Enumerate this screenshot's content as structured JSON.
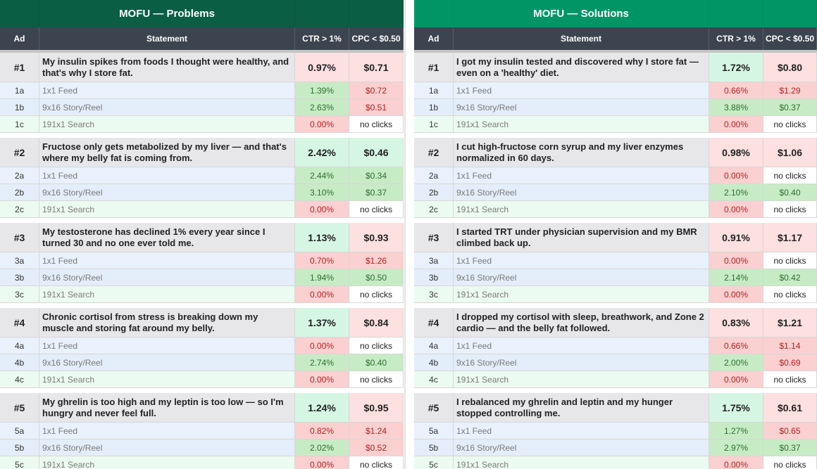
{
  "panels": [
    {
      "title": "MOFU — Problems",
      "title_color": "#095e43",
      "headers": {
        "ad": "Ad",
        "statement": "Statement",
        "ctr": "CTR > 1%",
        "cpc": "CPC < $0.50"
      },
      "groups": [
        {
          "main": {
            "ad": "#1",
            "statement": "My insulin spikes from foods I thought were healthy, and that's why I store fat.",
            "ctr": "0.97%",
            "ctr_status": "bad",
            "cpc": "$0.71",
            "cpc_status": "bad"
          },
          "subs": [
            {
              "ad": "1a",
              "format": "1x1 Feed",
              "ctr": "1.39%",
              "ctr_status": "good",
              "cpc": "$0.72",
              "cpc_status": "bad"
            },
            {
              "ad": "1b",
              "format": "9x16 Story/Reel",
              "ctr": "2.63%",
              "ctr_status": "good",
              "cpc": "$0.51",
              "cpc_status": "bad"
            },
            {
              "ad": "1c",
              "format": "191x1 Search",
              "ctr": "0.00%",
              "ctr_status": "zero",
              "cpc": "no clicks",
              "cpc_status": "none"
            }
          ]
        },
        {
          "main": {
            "ad": "#2",
            "statement": "Fructose only gets metabolized by my liver — and that's where my belly fat is coming from.",
            "ctr": "2.42%",
            "ctr_status": "good",
            "cpc": "$0.46",
            "cpc_status": "good"
          },
          "subs": [
            {
              "ad": "2a",
              "format": "1x1 Feed",
              "ctr": "2.44%",
              "ctr_status": "good",
              "cpc": "$0.34",
              "cpc_status": "good"
            },
            {
              "ad": "2b",
              "format": "9x16 Story/Reel",
              "ctr": "3.10%",
              "ctr_status": "good",
              "cpc": "$0.37",
              "cpc_status": "good"
            },
            {
              "ad": "2c",
              "format": "191x1 Search",
              "ctr": "0.00%",
              "ctr_status": "zero",
              "cpc": "no clicks",
              "cpc_status": "none"
            }
          ]
        },
        {
          "main": {
            "ad": "#3",
            "statement": "My testosterone has declined 1% every year since I turned 30 and no one ever told me.",
            "ctr": "1.13%",
            "ctr_status": "good",
            "cpc": "$0.93",
            "cpc_status": "bad"
          },
          "subs": [
            {
              "ad": "3a",
              "format": "1x1 Feed",
              "ctr": "0.70%",
              "ctr_status": "bad",
              "cpc": "$1.26",
              "cpc_status": "bad"
            },
            {
              "ad": "3b",
              "format": "9x16 Story/Reel",
              "ctr": "1.94%",
              "ctr_status": "good",
              "cpc": "$0.50",
              "cpc_status": "good"
            },
            {
              "ad": "3c",
              "format": "191x1 Search",
              "ctr": "0.00%",
              "ctr_status": "zero",
              "cpc": "no clicks",
              "cpc_status": "none"
            }
          ]
        },
        {
          "main": {
            "ad": "#4",
            "statement": "Chronic cortisol from stress is breaking down my muscle and storing fat around my belly.",
            "ctr": "1.37%",
            "ctr_status": "good",
            "cpc": "$0.84",
            "cpc_status": "bad"
          },
          "subs": [
            {
              "ad": "4a",
              "format": "1x1 Feed",
              "ctr": "0.00%",
              "ctr_status": "zero",
              "cpc": "no clicks",
              "cpc_status": "none"
            },
            {
              "ad": "4b",
              "format": "9x16 Story/Reel",
              "ctr": "2.74%",
              "ctr_status": "good",
              "cpc": "$0.40",
              "cpc_status": "good"
            },
            {
              "ad": "4c",
              "format": "191x1 Search",
              "ctr": "0.00%",
              "ctr_status": "zero",
              "cpc": "no clicks",
              "cpc_status": "none"
            }
          ]
        },
        {
          "main": {
            "ad": "#5",
            "statement": "My ghrelin is too high and my leptin is too low — so I'm hungry and never feel full.",
            "ctr": "1.24%",
            "ctr_status": "good",
            "cpc": "$0.95",
            "cpc_status": "bad"
          },
          "subs": [
            {
              "ad": "5a",
              "format": "1x1 Feed",
              "ctr": "0.82%",
              "ctr_status": "bad",
              "cpc": "$1.24",
              "cpc_status": "bad"
            },
            {
              "ad": "5b",
              "format": "9x16 Story/Reel",
              "ctr": "2.02%",
              "ctr_status": "good",
              "cpc": "$0.52",
              "cpc_status": "bad"
            },
            {
              "ad": "5c",
              "format": "191x1 Search",
              "ctr": "0.00%",
              "ctr_status": "zero",
              "cpc": "no clicks",
              "cpc_status": "none"
            }
          ]
        }
      ]
    },
    {
      "title": "MOFU — Solutions",
      "title_color": "#019566",
      "headers": {
        "ad": "Ad",
        "statement": "Statement",
        "ctr": "CTR > 1%",
        "cpc": "CPC < $0.50"
      },
      "groups": [
        {
          "main": {
            "ad": "#1",
            "statement": "I got my insulin tested and discovered why I store fat — even on a 'healthy' diet.",
            "ctr": "1.72%",
            "ctr_status": "good",
            "cpc": "$0.80",
            "cpc_status": "bad"
          },
          "subs": [
            {
              "ad": "1a",
              "format": "1x1 Feed",
              "ctr": "0.66%",
              "ctr_status": "bad",
              "cpc": "$1.29",
              "cpc_status": "bad"
            },
            {
              "ad": "1b",
              "format": "9x16 Story/Reel",
              "ctr": "3.88%",
              "ctr_status": "good",
              "cpc": "$0.37",
              "cpc_status": "good"
            },
            {
              "ad": "1c",
              "format": "191x1 Search",
              "ctr": "0.00%",
              "ctr_status": "zero",
              "cpc": "no clicks",
              "cpc_status": "none"
            }
          ]
        },
        {
          "main": {
            "ad": "#2",
            "statement": "I cut high-fructose corn syrup and my liver enzymes normalized in 60 days.",
            "ctr": "0.98%",
            "ctr_status": "bad",
            "cpc": "$1.06",
            "cpc_status": "bad"
          },
          "subs": [
            {
              "ad": "2a",
              "format": "1x1 Feed",
              "ctr": "0.00%",
              "ctr_status": "zero",
              "cpc": "no clicks",
              "cpc_status": "none"
            },
            {
              "ad": "2b",
              "format": "9x16 Story/Reel",
              "ctr": "2.10%",
              "ctr_status": "good",
              "cpc": "$0.40",
              "cpc_status": "good"
            },
            {
              "ad": "2c",
              "format": "191x1 Search",
              "ctr": "0.00%",
              "ctr_status": "zero",
              "cpc": "no clicks",
              "cpc_status": "none"
            }
          ]
        },
        {
          "main": {
            "ad": "#3",
            "statement": "I started TRT under physician supervision and my BMR climbed back up.",
            "ctr": "0.91%",
            "ctr_status": "bad",
            "cpc": "$1.17",
            "cpc_status": "bad"
          },
          "subs": [
            {
              "ad": "3a",
              "format": "1x1 Feed",
              "ctr": "0.00%",
              "ctr_status": "zero",
              "cpc": "no clicks",
              "cpc_status": "none"
            },
            {
              "ad": "3b",
              "format": "9x16 Story/Reel",
              "ctr": "2.14%",
              "ctr_status": "good",
              "cpc": "$0.42",
              "cpc_status": "good"
            },
            {
              "ad": "3c",
              "format": "191x1 Search",
              "ctr": "0.00%",
              "ctr_status": "zero",
              "cpc": "no clicks",
              "cpc_status": "none"
            }
          ]
        },
        {
          "main": {
            "ad": "#4",
            "statement": "I dropped my cortisol with sleep, breathwork, and Zone 2 cardio — and the belly fat followed.",
            "ctr": "0.83%",
            "ctr_status": "bad",
            "cpc": "$1.21",
            "cpc_status": "bad"
          },
          "subs": [
            {
              "ad": "4a",
              "format": "1x1 Feed",
              "ctr": "0.66%",
              "ctr_status": "bad",
              "cpc": "$1.14",
              "cpc_status": "bad"
            },
            {
              "ad": "4b",
              "format": "9x16 Story/Reel",
              "ctr": "2.00%",
              "ctr_status": "good",
              "cpc": "$0.69",
              "cpc_status": "bad"
            },
            {
              "ad": "4c",
              "format": "191x1 Search",
              "ctr": "0.00%",
              "ctr_status": "zero",
              "cpc": "no clicks",
              "cpc_status": "none"
            }
          ]
        },
        {
          "main": {
            "ad": "#5",
            "statement": "I rebalanced my ghrelin and leptin and my hunger stopped controlling me.",
            "ctr": "1.75%",
            "ctr_status": "good",
            "cpc": "$0.61",
            "cpc_status": "bad"
          },
          "subs": [
            {
              "ad": "5a",
              "format": "1x1 Feed",
              "ctr": "1.27%",
              "ctr_status": "good",
              "cpc": "$0.65",
              "cpc_status": "bad"
            },
            {
              "ad": "5b",
              "format": "9x16 Story/Reel",
              "ctr": "2.97%",
              "ctr_status": "good",
              "cpc": "$0.37",
              "cpc_status": "good"
            },
            {
              "ad": "5c",
              "format": "191x1 Search",
              "ctr": "0.00%",
              "ctr_status": "zero",
              "cpc": "no clicks",
              "cpc_status": "none"
            }
          ]
        }
      ]
    }
  ]
}
